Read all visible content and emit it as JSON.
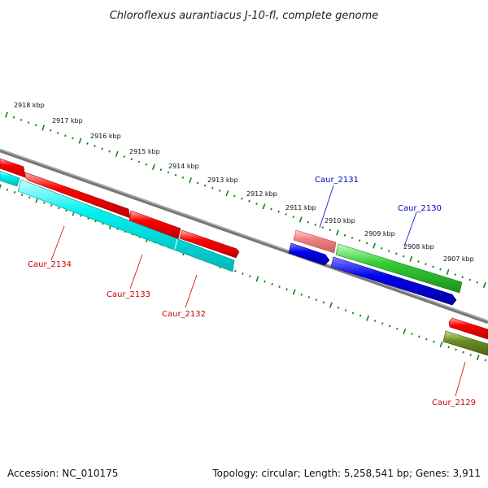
{
  "title": "Chloroflexus aurantiacus J-10-fl, complete genome",
  "ruler": {
    "tick_labels": [
      "2918 kbp",
      "2917 kbp",
      "2916 kbp",
      "2915 kbp",
      "2914 kbp",
      "2913 kbp",
      "2912 kbp",
      "2911 kbp",
      "2910 kbp",
      "2909 kbp",
      "2908 kbp",
      "2907 kbp"
    ],
    "tick_color": "#118811"
  },
  "backbone_color": "#777777",
  "genes": [
    {
      "id": "caur-2134",
      "label": "Caur_2134",
      "label_color": "#cc0000",
      "strand": "forward-lower",
      "color": "#00e6e6"
    },
    {
      "id": "caur-2133",
      "label": "Caur_2133",
      "label_color": "#cc0000",
      "strand": "forward",
      "color": "#ff0000"
    },
    {
      "id": "caur-2132",
      "label": "Caur_2132",
      "label_color": "#cc0000",
      "strand": "forward",
      "color": "#ff0000"
    },
    {
      "id": "caur-2131",
      "label": "Caur_2131",
      "label_color": "#0000cc",
      "strand": "reverse",
      "color": "#f08080"
    },
    {
      "id": "caur-2130",
      "label": "Caur_2130",
      "label_color": "#0000cc",
      "strand": "reverse",
      "color": "#33cc33"
    },
    {
      "id": "caur-2129",
      "label": "Caur_2129",
      "label_color": "#cc0000",
      "strand": "forward",
      "color": "#6b8e23"
    }
  ],
  "footer": {
    "accession": "Accession: NC_010175",
    "topology": "Topology: circular; Length: 5,258,541 bp; Genes: 3,911"
  }
}
